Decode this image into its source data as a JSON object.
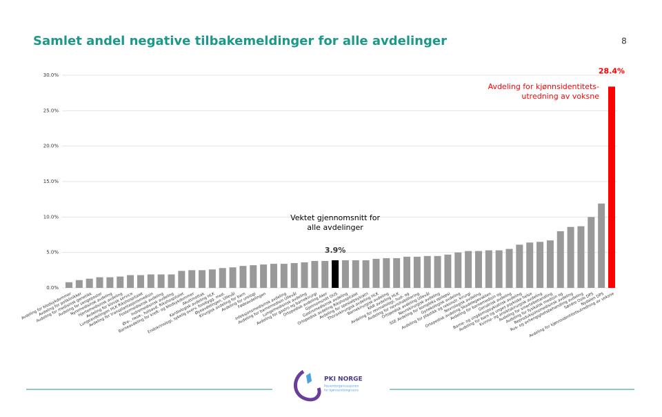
{
  "chart_data": {
    "type": "bar",
    "title": "Samlet andel negative tilbakemeldinger for alle avdelinger",
    "page_number": "8",
    "categories": [
      "Avdeling for blodsykdommer",
      "Avdeling for poliklinikker",
      "Avdeling for medisinsk genetikk",
      "Avdeling for sengeposter",
      "Nyremedisinsk avdeling",
      "Hjertemedisinsk avdeling",
      "Avdeling for klinisk service",
      "Lungeavdelingen HLK Rikshospitalet",
      "Avdeling for transplantasjonsmedisin",
      "Fostermedisinsk avdeling",
      "Indremedisinsk avdeling",
      "Øre-, nese-, halsavd. Rikshospitalet",
      "Barneavdeling for kreft- og blodsykdommer",
      "Akuttmottak",
      "Kardiologisk avdeling HLK",
      "Endokrinologi, sykelig overv. forebygg. med.",
      "Øyeavdelingen, Ullevål",
      "Kirurgisk avdeling for barn",
      "Avdeling for urologi",
      "Fødeavdelingen",
      null,
      "Infeksjonsmedisinsk avdeling",
      "Avdeling for barnemedisin Ullevål",
      "Lungemedisinsk avdeling",
      "Avdeling for gastro og barnekirurgi",
      "Ortopedisk avdeling Aker",
      "Gjennomsnitt OUS",
      "Gastromedisinsk avdeling",
      "Ortopedisk avdeling Rikshospitalet",
      "Avdeling for spesialpsykiatri",
      "Thoraxkirurgisk avdeling HLK",
      "Barnekirurgisk avdeling",
      "KAR avdeling HLK",
      "Avdeling for revmatologi, hud- og",
      "Avdeling for nevrohabilitering",
      "Ortopedisk avdeling Ullevål",
      "Nevrokirurgisk avdeling",
      "SSE Avdeling for kompleks epilepsi",
      "Gynekologisk avdeling",
      "Avdeling for plastikk og rekonstr. kirurgi",
      "Nevrologisk avdeling",
      "Ortopedisk avdeling Skadelegevakten",
      "Avdeling for barnemedisin og",
      "Geriatrisk avdeling",
      "Barne- og ungdomspsykiatrisk avdeling",
      "Avdeling for barn og unges psykiske helse",
      "Kvinne- og ansiktskirurgisk avdeling",
      "Avdeling for smertebehandling",
      "Avdeling for fysikalsk medisin og",
      "Reproduksjonsmedisinsk avdeling",
      "Rus- og avhengighetsbehandling avdeling",
      "Søndre Oslo DPS",
      "Nydalen DPS",
      "Avdeling for kjønnsidentitetsutredning av voksne"
    ],
    "values": [
      0.8,
      1.1,
      1.3,
      1.5,
      1.5,
      1.6,
      1.8,
      1.8,
      1.9,
      1.9,
      1.9,
      2.4,
      2.5,
      2.5,
      2.6,
      2.8,
      2.9,
      3.1,
      3.2,
      3.3,
      3.4,
      3.4,
      3.5,
      3.6,
      3.8,
      3.8,
      3.9,
      3.9,
      3.9,
      3.9,
      4.1,
      4.2,
      4.2,
      4.4,
      4.4,
      4.5,
      4.5,
      4.7,
      5.0,
      5.2,
      5.2,
      5.3,
      5.3,
      5.5,
      6.1,
      6.4,
      6.5,
      6.7,
      8.0,
      8.6,
      8.7,
      10.0,
      11.9,
      28.4
    ],
    "value_labels": [
      null,
      null,
      null,
      null,
      null,
      null,
      null,
      null,
      null,
      null,
      null,
      null,
      null,
      null,
      null,
      null,
      null,
      null,
      null,
      null,
      null,
      null,
      null,
      null,
      null,
      null,
      "3.9%",
      null,
      null,
      null,
      null,
      null,
      null,
      null,
      null,
      null,
      null,
      null,
      null,
      null,
      null,
      null,
      null,
      null,
      null,
      null,
      null,
      null,
      null,
      null,
      null,
      null,
      null,
      "28.4%"
    ],
    "colors": [
      "#999999",
      "#999999",
      "#999999",
      "#999999",
      "#999999",
      "#999999",
      "#999999",
      "#999999",
      "#999999",
      "#999999",
      "#999999",
      "#999999",
      "#999999",
      "#999999",
      "#999999",
      "#999999",
      "#999999",
      "#999999",
      "#999999",
      "#999999",
      "#999999",
      "#999999",
      "#999999",
      "#999999",
      "#999999",
      "#999999",
      "#000000",
      "#999999",
      "#999999",
      "#999999",
      "#999999",
      "#999999",
      "#999999",
      "#999999",
      "#999999",
      "#999999",
      "#999999",
      "#999999",
      "#999999",
      "#999999",
      "#999999",
      "#999999",
      "#999999",
      "#999999",
      "#999999",
      "#999999",
      "#999999",
      "#999999",
      "#999999",
      "#999999",
      "#999999",
      "#999999",
      "#999999",
      "#ff0000"
    ],
    "annotations": [
      {
        "lines": [
          "Vektet gjennomsnitt for",
          "alle avdelinger"
        ],
        "color": "#000000"
      },
      {
        "lines": [
          "Avdeling for kjønnsidentitets-",
          "utredning av voksne"
        ],
        "color": "#ff0000"
      }
    ],
    "ylim": [
      0,
      30
    ],
    "yticks": [
      {
        "value": 0,
        "label": "0.0%"
      },
      {
        "value": 5,
        "label": "5.0%"
      },
      {
        "value": 10,
        "label": "10.0%"
      },
      {
        "value": 15,
        "label": "15.0%"
      },
      {
        "value": 20,
        "label": "20.0%"
      },
      {
        "value": 25,
        "label": "25.0%"
      },
      {
        "value": 30,
        "label": "30.0%"
      }
    ],
    "grid": true
  },
  "footer": {
    "logo_title": "PKI NORGE",
    "logo_subtitle": [
      "Pasientorganisasjonen",
      "for kjønnsinkongruens"
    ]
  }
}
